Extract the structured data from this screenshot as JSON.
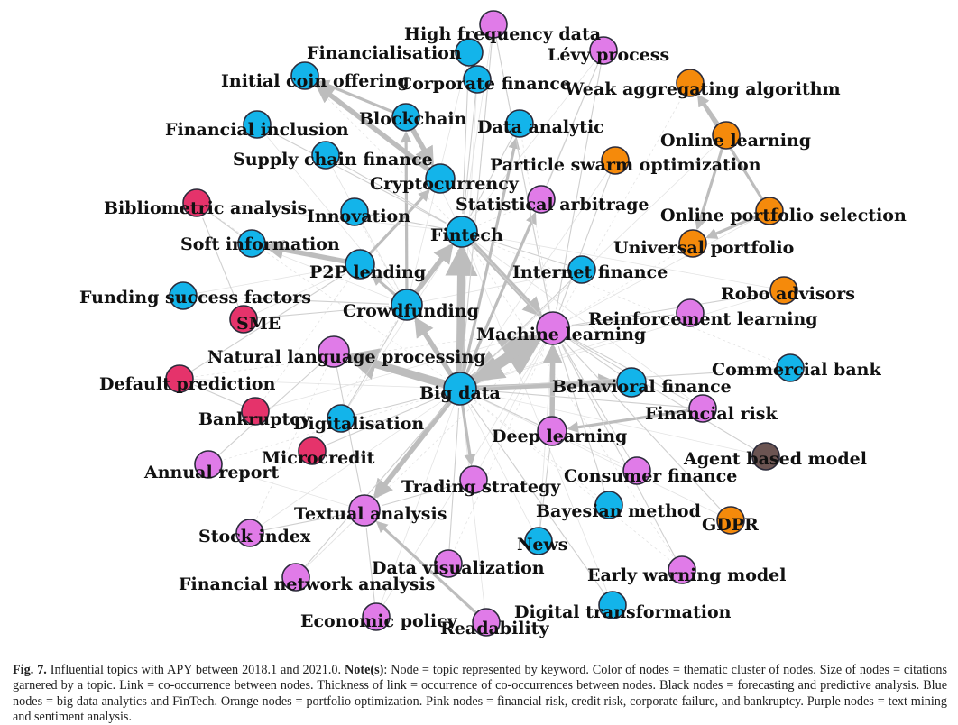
{
  "colors": {
    "blue": "#13b4ea",
    "orange": "#f58a0b",
    "pink": "#e5336b",
    "purple": "#e07be8",
    "brown": "#6b5452",
    "edge": "#cfcfcf",
    "edge_strong": "#bdbdbd"
  },
  "nodes": [
    {
      "id": "high-frequency-data",
      "label": "High frequency data",
      "group": "purple"
    },
    {
      "id": "financialisation",
      "label": "Financialisation",
      "group": "blue"
    },
    {
      "id": "levy-process",
      "label": "Lévy process",
      "group": "purple"
    },
    {
      "id": "initial-coin-offering",
      "label": "Initial coin offering",
      "group": "blue"
    },
    {
      "id": "corporate-finance",
      "label": "Corporate finance",
      "group": "blue"
    },
    {
      "id": "weak-aggregating-algorithm",
      "label": "Weak aggregating algorithm",
      "group": "orange"
    },
    {
      "id": "blockchain",
      "label": "Blockchain",
      "group": "blue"
    },
    {
      "id": "financial-inclusion",
      "label": "Financial inclusion",
      "group": "blue"
    },
    {
      "id": "data-analytic",
      "label": "Data analytic",
      "group": "blue"
    },
    {
      "id": "online-learning",
      "label": "Online learning",
      "group": "orange"
    },
    {
      "id": "supply-chain-finance",
      "label": "Supply chain finance",
      "group": "blue"
    },
    {
      "id": "particle-swarm-optimization",
      "label": "Particle swarm optimization",
      "group": "orange"
    },
    {
      "id": "cryptocurrency",
      "label": "Cryptocurrency",
      "group": "blue"
    },
    {
      "id": "bibliometric-analysis",
      "label": "Bibliometric analysis",
      "group": "pink"
    },
    {
      "id": "statistical-arbitrage",
      "label": "Statistical arbitrage",
      "group": "purple"
    },
    {
      "id": "innovation",
      "label": "Innovation",
      "group": "blue"
    },
    {
      "id": "online-portfolio-selection",
      "label": "Online portfolio selection",
      "group": "orange"
    },
    {
      "id": "fintech",
      "label": "Fintech",
      "group": "blue"
    },
    {
      "id": "soft-information",
      "label": "Soft information",
      "group": "blue"
    },
    {
      "id": "universal-portfolio",
      "label": "Universal portfolio",
      "group": "orange"
    },
    {
      "id": "p2p-lending",
      "label": "P2P lending",
      "group": "blue"
    },
    {
      "id": "internet-finance",
      "label": "Internet finance",
      "group": "blue"
    },
    {
      "id": "funding-success-factors",
      "label": "Funding success factors",
      "group": "blue"
    },
    {
      "id": "robo-advisors",
      "label": "Robo advisors",
      "group": "orange"
    },
    {
      "id": "crowdfunding",
      "label": "Crowdfunding",
      "group": "blue"
    },
    {
      "id": "sme",
      "label": "SME",
      "group": "pink"
    },
    {
      "id": "reinforcement-learning",
      "label": "Reinforcement learning",
      "group": "purple"
    },
    {
      "id": "machine-learning",
      "label": "Machine learning",
      "group": "purple"
    },
    {
      "id": "natural-language-processing",
      "label": "Natural language processing",
      "group": "purple"
    },
    {
      "id": "commercial-bank",
      "label": "Commercial bank",
      "group": "blue"
    },
    {
      "id": "default-prediction",
      "label": "Default prediction",
      "group": "pink"
    },
    {
      "id": "behavioral-finance",
      "label": "Behavioral finance",
      "group": "blue"
    },
    {
      "id": "big-data",
      "label": "Big data",
      "group": "blue"
    },
    {
      "id": "financial-risk",
      "label": "Financial risk",
      "group": "purple"
    },
    {
      "id": "bankruptcy",
      "label": "Bankruptcy",
      "group": "pink"
    },
    {
      "id": "digitalisation",
      "label": "Digitalisation",
      "group": "blue"
    },
    {
      "id": "deep-learning",
      "label": "Deep learning",
      "group": "purple"
    },
    {
      "id": "microcredit",
      "label": "Microcredit",
      "group": "pink"
    },
    {
      "id": "agent-based-model",
      "label": "Agent based model",
      "group": "brown"
    },
    {
      "id": "annual-report",
      "label": "Annual report",
      "group": "purple"
    },
    {
      "id": "consumer-finance",
      "label": "Consumer finance",
      "group": "purple"
    },
    {
      "id": "trading-strategy",
      "label": "Trading strategy",
      "group": "purple"
    },
    {
      "id": "textual-analysis",
      "label": "Textual analysis",
      "group": "purple"
    },
    {
      "id": "bayesian-method",
      "label": "Bayesian method",
      "group": "blue"
    },
    {
      "id": "gdpr",
      "label": "GDPR",
      "group": "orange"
    },
    {
      "id": "stock-index",
      "label": "Stock index",
      "group": "purple"
    },
    {
      "id": "news",
      "label": "News",
      "group": "blue"
    },
    {
      "id": "data-visualization",
      "label": "Data visualization",
      "group": "purple"
    },
    {
      "id": "early-warning-model",
      "label": "Early warning model",
      "group": "purple"
    },
    {
      "id": "financial-network-analysis",
      "label": "Financial network analysis",
      "group": "purple"
    },
    {
      "id": "digital-transformation",
      "label": "Digital transformation",
      "group": "blue"
    },
    {
      "id": "economic-policy",
      "label": "Economic policy",
      "group": "purple"
    },
    {
      "id": "readability",
      "label": "Readability",
      "group": "purple"
    }
  ],
  "edges": [
    {
      "from": "big-data",
      "to": "machine-learning",
      "weight": 5
    },
    {
      "from": "machine-learning",
      "to": "big-data",
      "weight": 4
    },
    {
      "from": "big-data",
      "to": "fintech",
      "weight": 4
    },
    {
      "from": "crowdfunding",
      "to": "fintech",
      "weight": 3
    },
    {
      "from": "big-data",
      "to": "natural-language-processing",
      "weight": 4
    },
    {
      "from": "big-data",
      "to": "crowdfunding",
      "weight": 3
    },
    {
      "from": "fintech",
      "to": "machine-learning",
      "weight": 3
    },
    {
      "from": "p2p-lending",
      "to": "soft-information",
      "weight": 3
    },
    {
      "from": "deep-learning",
      "to": "machine-learning",
      "weight": 3
    },
    {
      "from": "big-data",
      "to": "behavioral-finance",
      "weight": 3
    },
    {
      "from": "big-data",
      "to": "textual-analysis",
      "weight": 3
    },
    {
      "from": "blockchain",
      "to": "cryptocurrency",
      "weight": 3
    },
    {
      "from": "cryptocurrency",
      "to": "initial-coin-offering",
      "weight": 3
    },
    {
      "from": "blockchain",
      "to": "initial-coin-offering",
      "weight": 2
    },
    {
      "from": "big-data",
      "to": "statistical-arbitrage",
      "weight": 2
    },
    {
      "from": "big-data",
      "to": "data-analytic",
      "weight": 2
    },
    {
      "from": "p2p-lending",
      "to": "cryptocurrency",
      "weight": 2
    },
    {
      "from": "crowdfunding",
      "to": "p2p-lending",
      "weight": 2
    },
    {
      "from": "crowdfunding",
      "to": "blockchain",
      "weight": 2
    },
    {
      "from": "online-portfolio-selection",
      "to": "weak-aggregating-algorithm",
      "weight": 2
    },
    {
      "from": "online-learning",
      "to": "weak-aggregating-algorithm",
      "weight": 2
    },
    {
      "from": "online-learning",
      "to": "universal-portfolio",
      "weight": 2
    },
    {
      "from": "online-portfolio-selection",
      "to": "universal-portfolio",
      "weight": 2
    },
    {
      "from": "financial-risk",
      "to": "deep-learning",
      "weight": 2
    },
    {
      "from": "readability",
      "to": "textual-analysis",
      "weight": 2
    },
    {
      "from": "big-data",
      "to": "trading-strategy",
      "weight": 2
    },
    {
      "from": "sme",
      "to": "bibliometric-analysis",
      "weight": 1
    },
    {
      "from": "bankruptcy",
      "to": "default-prediction",
      "weight": 1
    },
    {
      "from": "machine-learning",
      "to": "reinforcement-learning",
      "weight": 1
    },
    {
      "from": "machine-learning",
      "to": "financial-risk",
      "weight": 1
    },
    {
      "from": "high-frequency-data",
      "to": "machine-learning",
      "weight": 1
    },
    {
      "from": "levy-process",
      "to": "statistical-arbitrage",
      "weight": 1
    },
    {
      "from": "corporate-finance",
      "to": "fintech",
      "weight": 1
    },
    {
      "from": "financial-inclusion",
      "to": "fintech",
      "weight": 1
    },
    {
      "from": "supply-chain-finance",
      "to": "fintech",
      "weight": 1
    },
    {
      "from": "innovation",
      "to": "fintech",
      "weight": 1
    },
    {
      "from": "funding-success-factors",
      "to": "crowdfunding",
      "weight": 1
    },
    {
      "from": "sme",
      "to": "crowdfunding",
      "weight": 1
    },
    {
      "from": "default-prediction",
      "to": "p2p-lending",
      "weight": 1
    },
    {
      "from": "digitalisation",
      "to": "big-data",
      "weight": 1
    },
    {
      "from": "microcredit",
      "to": "big-data",
      "weight": 1
    },
    {
      "from": "annual-report",
      "to": "natural-language-processing",
      "weight": 1
    },
    {
      "from": "stock-index",
      "to": "textual-analysis",
      "weight": 1
    },
    {
      "from": "news",
      "to": "deep-learning",
      "weight": 1
    },
    {
      "from": "data-visualization",
      "to": "big-data",
      "weight": 1
    },
    {
      "from": "financial-network-analysis",
      "to": "big-data",
      "weight": 1
    },
    {
      "from": "economic-policy",
      "to": "textual-analysis",
      "weight": 1
    },
    {
      "from": "digital-transformation",
      "to": "big-data",
      "weight": 1
    },
    {
      "from": "consumer-finance",
      "to": "machine-learning",
      "weight": 1
    },
    {
      "from": "bayesian-method",
      "to": "machine-learning",
      "weight": 1
    },
    {
      "from": "early-warning-model",
      "to": "machine-learning",
      "weight": 1
    },
    {
      "from": "commercial-bank",
      "to": "big-data",
      "weight": 1
    },
    {
      "from": "robo-advisors",
      "to": "machine-learning",
      "weight": 1
    },
    {
      "from": "internet-finance",
      "to": "fintech",
      "weight": 1
    },
    {
      "from": "particle-swarm-optimization",
      "to": "machine-learning",
      "weight": 1
    },
    {
      "from": "agent-based-model",
      "to": "machine-learning",
      "weight": 1
    },
    {
      "from": "gdpr",
      "to": "fintech",
      "weight": 1
    },
    {
      "from": "financialisation",
      "to": "fintech",
      "weight": 1
    },
    {
      "from": "data-analytic",
      "to": "fintech",
      "weight": 1
    },
    {
      "from": "trading-strategy",
      "to": "textual-analysis",
      "weight": 1
    },
    {
      "from": "natural-language-processing",
      "to": "textual-analysis",
      "weight": 1
    },
    {
      "from": "financial-risk",
      "to": "big-data",
      "weight": 1
    },
    {
      "from": "behavioral-finance",
      "to": "machine-learning",
      "weight": 1
    },
    {
      "from": "deep-learning",
      "to": "big-data",
      "weight": 1
    },
    {
      "from": "internet-finance",
      "to": "big-data",
      "weight": 1
    },
    {
      "from": "soft-information",
      "to": "bibliometric-analysis",
      "weight": 1
    },
    {
      "from": "digitalisation",
      "to": "crowdfunding",
      "weight": 1
    },
    {
      "from": "high-frequency-data",
      "to": "big-data",
      "weight": 1
    },
    {
      "from": "levy-process",
      "to": "machine-learning",
      "weight": 1
    }
  ],
  "caption": {
    "figure_number": "Fig. 7.",
    "text": "Influential topics with APY between 2018.1 and 2021.0.",
    "note_label": "Note(s)",
    "note_text": ": Node = topic represented by keyword. Color of nodes = thematic cluster of nodes. Size of nodes = citations garnered by a topic. Link = co-occurrence between nodes. Thickness of link = occurrence of co-occurrences between nodes. Black nodes = forecasting and predictive analysis. Blue nodes = big data analytics and FinTech. Orange nodes = portfolio optimization. Pink nodes = financial risk, credit risk, corporate failure, and bankruptcy. Purple nodes = text mining and sentiment analysis."
  }
}
